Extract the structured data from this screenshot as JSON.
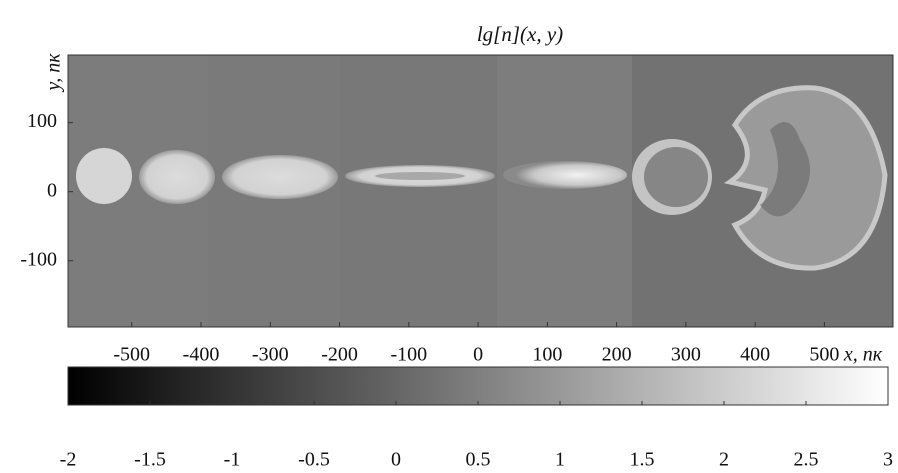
{
  "chart_data": {
    "type": "heatmap",
    "title": "lg[n](x, y)",
    "xlabel": "x, пк",
    "ylabel": "y, пк",
    "xlim": [
      -592,
      599
    ],
    "ylim": [
      -196,
      198
    ],
    "xticks": [
      -500,
      -400,
      -300,
      -200,
      -100,
      0,
      100,
      200,
      300,
      400,
      500
    ],
    "yticks": [
      -100,
      0,
      100
    ],
    "colorbar": {
      "clim": [
        -2,
        3
      ],
      "ticks": [
        -2,
        -1.5,
        -1,
        -0.5,
        0,
        0.5,
        1,
        1.5,
        2,
        2.5,
        3
      ],
      "colors": [
        "#000000",
        "#ffffff"
      ]
    }
  }
}
